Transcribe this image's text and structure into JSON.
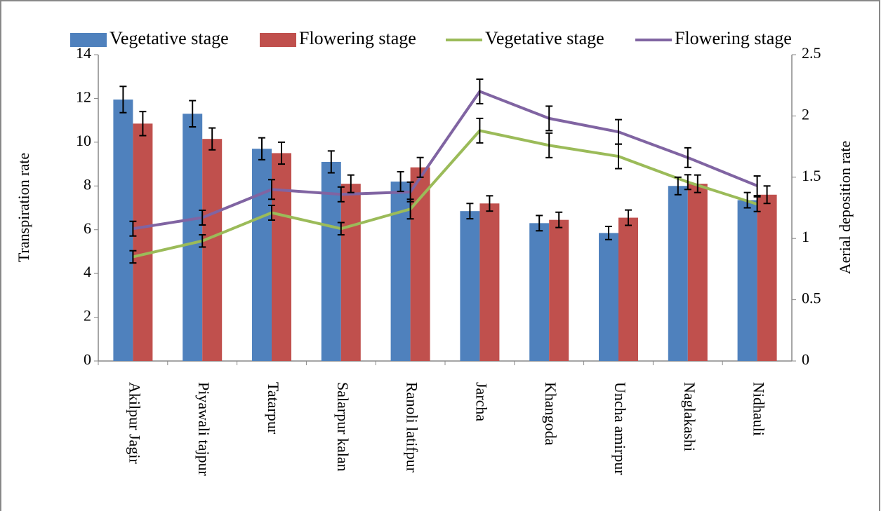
{
  "chart_data": {
    "type": "bar",
    "categories": [
      "Akilpur Jagir",
      "Piyawali tajpur",
      "Tatarpur",
      "Salarpur kalan",
      "Ranoli latifpur",
      "Jarcha",
      "Khangoda",
      "Uncha amirpur",
      "Naglakashi",
      "Nidhauli"
    ],
    "y_label": "Transpiration rate",
    "y2_label": "Aerial deposition rate",
    "ylim": [
      0,
      14
    ],
    "yticks": [
      0,
      2,
      4,
      6,
      8,
      10,
      12,
      14
    ],
    "y2lim": [
      0,
      2.5
    ],
    "y2ticks": [
      0,
      0.5,
      1,
      1.5,
      2,
      2.5
    ],
    "series": [
      {
        "name": "Vegetative stage",
        "type": "bar",
        "color": "#4f81bd",
        "values": [
          11.95,
          11.3,
          9.7,
          9.1,
          8.2,
          6.85,
          6.3,
          5.85,
          8.0,
          7.35
        ],
        "errors": [
          0.6,
          0.6,
          0.5,
          0.5,
          0.45,
          0.35,
          0.35,
          0.3,
          0.4,
          0.35
        ]
      },
      {
        "name": "Flowering stage",
        "type": "bar",
        "color": "#c0504d",
        "values": [
          10.85,
          10.15,
          9.5,
          8.1,
          8.85,
          7.2,
          6.45,
          6.55,
          8.1,
          7.6
        ],
        "errors": [
          0.55,
          0.5,
          0.5,
          0.4,
          0.45,
          0.35,
          0.35,
          0.35,
          0.4,
          0.4
        ]
      },
      {
        "name": "Vegetative stage",
        "type": "line",
        "axis": "y2",
        "color": "#9bbb59",
        "values": [
          0.85,
          0.98,
          1.21,
          1.08,
          1.24,
          1.88,
          1.76,
          1.67,
          1.46,
          1.28
        ],
        "errors": [
          0.05,
          0.05,
          0.06,
          0.05,
          0.08,
          0.1,
          0.1,
          0.1,
          0.06,
          0.06
        ]
      },
      {
        "name": "Flowering stage",
        "type": "line",
        "axis": "y2",
        "color": "#8064a2",
        "values": [
          1.08,
          1.17,
          1.4,
          1.36,
          1.38,
          2.2,
          1.98,
          1.87,
          1.66,
          1.43
        ],
        "errors": [
          0.06,
          0.06,
          0.08,
          0.06,
          0.08,
          0.1,
          0.1,
          0.1,
          0.08,
          0.08
        ]
      }
    ]
  }
}
